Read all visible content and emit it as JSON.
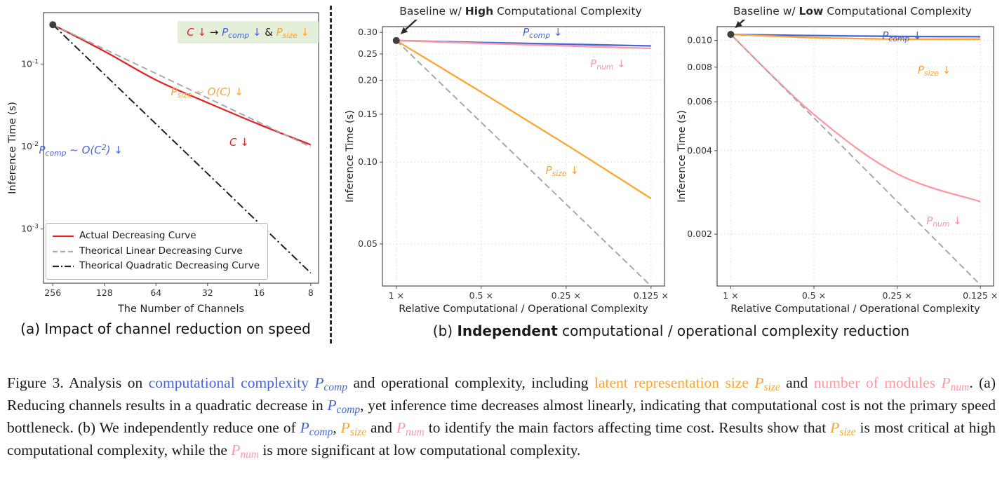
{
  "colors": {
    "blue": "#4466d9",
    "orange": "#ffa333",
    "pink": "#ff98a0",
    "red": "#e62325",
    "gray": "#a9a9a9",
    "black": "#1a1a1a",
    "dark": "#2a2a2a",
    "green_box_bg": "#e4efd9"
  },
  "panel_a_caption": "(a) Impact of channel reduction on speed",
  "panel_b_caption_segments": [
    {
      "text": "(b) ",
      "color": "black"
    },
    {
      "text": "Independent",
      "color": "black",
      "bold": true
    },
    {
      "text": " computational / operational complexity reduction",
      "color": "black"
    }
  ],
  "chart_data": [
    {
      "mount": "chart-a",
      "type": "line",
      "xlabel": "The Number of Channels",
      "ylabel": "Inference Time (s)",
      "xscale": "log",
      "yscale": "log",
      "x_reversed": true,
      "xlim": [
        7.2,
        290
      ],
      "ylim": [
        0.00022,
        0.42
      ],
      "x": [
        256,
        128,
        64,
        32,
        16,
        8
      ],
      "xticks": [
        {
          "v": 256,
          "label": "256"
        },
        {
          "v": 128,
          "label": "128"
        },
        {
          "v": 64,
          "label": "64"
        },
        {
          "v": 32,
          "label": "32"
        },
        {
          "v": 16,
          "label": "16"
        },
        {
          "v": 8,
          "label": "8"
        }
      ],
      "yticks": [
        {
          "v": 0.1,
          "label": "10^{-1}"
        },
        {
          "v": 0.01,
          "label": "10^{-2}"
        },
        {
          "v": 0.001,
          "label": "10^{-3}"
        }
      ],
      "margins": {
        "l": 54,
        "t": 12,
        "r": 10,
        "b": 50
      },
      "start_dot": true,
      "legend": true,
      "series": [
        {
          "key": "actual",
          "name": "Actual Decreasing Curve",
          "color": "red",
          "dash": "solid",
          "width": 2.3,
          "smooth": true,
          "values": [
            0.3,
            0.143,
            0.064,
            0.034,
            0.0185,
            0.0105
          ]
        },
        {
          "key": "linear",
          "name": "Theorical Linear Decreasing Curve",
          "color": "gray",
          "dash": "dashed",
          "width": 2,
          "values": [
            0.3,
            0.1517,
            0.0767,
            0.0388,
            0.0196,
            0.0099
          ]
        },
        {
          "key": "quadratic",
          "name": "Theorical Quadratic Decreasing Curve",
          "color": "#222222",
          "dash": "dashdot",
          "width": 2,
          "values": [
            0.3,
            0.075,
            0.01875,
            0.00469,
            0.00117,
            0.000293
          ]
        }
      ],
      "note_segments": [
        {
          "math": "C ↓",
          "color": "red"
        },
        {
          "text": "   →   ",
          "color": "black"
        },
        {
          "math": "P_{comp} ↓",
          "color": "blue"
        },
        {
          "text": " & ",
          "color": "black"
        },
        {
          "math": "P_{size} ↓",
          "color": "orange"
        }
      ],
      "annotations": [
        {
          "name": "annotation-p-size-linear",
          "math": "P_{size} ~ O(C) ↓",
          "color": "orange",
          "x": 63,
          "y": 28
        },
        {
          "name": "annotation-channel-reduction",
          "math": "C ↓",
          "color": "red",
          "x": 73,
          "y": 44
        },
        {
          "name": "annotation-p-comp-quadratic",
          "math": "P_{comp} ~ O(C^{2}) ↓",
          "color": "blue",
          "x": 23.5,
          "y": 46.5
        }
      ]
    },
    {
      "mount": "chart-b1",
      "type": "line",
      "title_segments": [
        {
          "text": "Baseline w/ ",
          "color": "dark"
        },
        {
          "text": "High",
          "color": "dark",
          "bold": true
        },
        {
          "text": " Computational Complexity",
          "color": "dark"
        }
      ],
      "xlabel": "Relative Computational / Operational Complexity",
      "ylabel": "Inference Time (s)",
      "xscale": "log",
      "yscale": "log",
      "x_reversed": true,
      "xlim": [
        0.112,
        1.12
      ],
      "ylim": [
        0.035,
        0.315
      ],
      "x": [
        1,
        0.5,
        0.25,
        0.125
      ],
      "xticks": [
        {
          "v": 1,
          "label": "1 ×"
        },
        {
          "v": 0.5,
          "label": "0.5 ×"
        },
        {
          "v": 0.25,
          "label": "0.25 ×"
        },
        {
          "v": 0.125,
          "label": "0.125 ×"
        }
      ],
      "yticks": [
        {
          "v": 0.3,
          "label": "0.30"
        },
        {
          "v": 0.25,
          "label": "0.25"
        },
        {
          "v": 0.2,
          "label": "0.20"
        },
        {
          "v": 0.15,
          "label": "0.15"
        },
        {
          "v": 0.1,
          "label": "0.10"
        },
        {
          "v": 0.05,
          "label": "0.05"
        }
      ],
      "margins": {
        "l": 56,
        "t": 10,
        "r": 8,
        "b": 46
      },
      "grid": true,
      "start_dot": true,
      "baseline_arrow": true,
      "series": [
        {
          "key": "p-comp",
          "name": "P_{comp}",
          "color": "blue",
          "dash": "solid",
          "width": 2.3,
          "smooth": true,
          "values": [
            0.28,
            0.2755,
            0.2715,
            0.2675
          ]
        },
        {
          "key": "p-num",
          "name": "P_{num}",
          "color": "pink",
          "dash": "solid",
          "width": 2.3,
          "smooth": true,
          "values": [
            0.28,
            0.2735,
            0.2675,
            0.262
          ]
        },
        {
          "key": "p-size",
          "name": "P_{size}",
          "color": "orange",
          "dash": "solid",
          "width": 2.3,
          "smooth": true,
          "values": [
            0.28,
            0.181,
            0.116,
            0.0735
          ]
        },
        {
          "key": "theoretical",
          "name": "",
          "color": "gray",
          "dash": "dashed",
          "width": 2,
          "values": [
            0.28,
            0.14,
            0.07,
            0.035
          ]
        }
      ],
      "annotations": [
        {
          "name": "annotation-p-comp",
          "math": "P_{comp} ↓",
          "color": "blue",
          "x": 61,
          "y": 9
        },
        {
          "name": "annotation-p-num",
          "math": "P_{num} ↓",
          "color": "pink",
          "x": 81,
          "y": 19
        },
        {
          "name": "annotation-p-size",
          "math": "P_{size} ↓",
          "color": "orange",
          "x": 67,
          "y": 53
        }
      ]
    },
    {
      "mount": "chart-b2",
      "type": "line",
      "title_segments": [
        {
          "text": "Baseline w/ ",
          "color": "dark"
        },
        {
          "text": "Low",
          "color": "dark",
          "bold": true
        },
        {
          "text": " Computational Complexity",
          "color": "dark"
        }
      ],
      "xlabel": "Relative Computational / Operational Complexity",
      "ylabel": "Inference Time (s)",
      "xscale": "log",
      "yscale": "log",
      "x_reversed": true,
      "xlim": [
        0.112,
        1.12
      ],
      "ylim": [
        0.0013,
        0.0112
      ],
      "x": [
        1,
        0.5,
        0.25,
        0.125
      ],
      "xticks": [
        {
          "v": 1,
          "label": "1 ×"
        },
        {
          "v": 0.5,
          "label": "0.5 ×"
        },
        {
          "v": 0.25,
          "label": "0.25 ×"
        },
        {
          "v": 0.125,
          "label": "0.125 ×"
        }
      ],
      "yticks": [
        {
          "v": 0.01,
          "label": "0.010"
        },
        {
          "v": 0.008,
          "label": "0.008"
        },
        {
          "v": 0.006,
          "label": "0.006"
        },
        {
          "v": 0.004,
          "label": "0.004"
        },
        {
          "v": 0.002,
          "label": "0.002"
        }
      ],
      "margins": {
        "l": 60,
        "t": 10,
        "r": 8,
        "b": 46
      },
      "grid": true,
      "start_dot": true,
      "baseline_arrow": true,
      "series": [
        {
          "key": "p-comp",
          "name": "P_{comp}",
          "color": "blue",
          "dash": "solid",
          "width": 2.3,
          "smooth": true,
          "values": [
            0.0105,
            0.0104,
            0.01033,
            0.0103
          ]
        },
        {
          "key": "p-size",
          "name": "P_{size}",
          "color": "orange",
          "dash": "solid",
          "width": 2.3,
          "smooth": true,
          "values": [
            0.0105,
            0.01022,
            0.0101,
            0.0101
          ]
        },
        {
          "key": "p-num",
          "name": "P_{num}",
          "color": "pink",
          "dash": "solid",
          "width": 2.3,
          "smooth": true,
          "values": [
            0.0105,
            0.0054,
            0.0033,
            0.00262
          ]
        },
        {
          "key": "theoretical",
          "name": "",
          "color": "gray",
          "dash": "dashed",
          "width": 2,
          "values": [
            0.0105,
            0.00525,
            0.002625,
            0.0013125
          ]
        }
      ],
      "annotations": [
        {
          "name": "annotation-p-comp",
          "math": "P_{comp} ↓",
          "color": "blue",
          "x": 70,
          "y": 10
        },
        {
          "name": "annotation-p-size",
          "math": "P_{size} ↓",
          "color": "orange",
          "x": 80,
          "y": 21
        },
        {
          "name": "annotation-p-num",
          "math": "P_{num} ↓",
          "color": "pink",
          "x": 83,
          "y": 69
        }
      ]
    }
  ],
  "figure_caption": {
    "segments": [
      {
        "text": "Figure 3. Analysis on ",
        "color": "black"
      },
      {
        "text": "computational complexity ",
        "color": "blue"
      },
      {
        "math": "P_{comp}",
        "color": "blue"
      },
      {
        "text": " and operational complexity, including ",
        "color": "black"
      },
      {
        "text": "latent representation size ",
        "color": "orange"
      },
      {
        "math": "P_{size}",
        "color": "orange"
      },
      {
        "text": " and ",
        "color": "black"
      },
      {
        "text": "number of modules ",
        "color": "pink"
      },
      {
        "math": "P_{num}",
        "color": "pink"
      },
      {
        "text": ". (a) Reducing channels results in a quadratic decrease in ",
        "color": "black"
      },
      {
        "math": "P_{comp}",
        "color": "blue"
      },
      {
        "text": ", yet inference time decreases almost linearly, indicating that computational cost is not the primary speed bottleneck. (b) We independently reduce one of ",
        "color": "black"
      },
      {
        "math": "P_{comp}",
        "color": "blue"
      },
      {
        "text": ", ",
        "color": "black"
      },
      {
        "math": "P_{size}",
        "color": "orange"
      },
      {
        "text": " and ",
        "color": "black"
      },
      {
        "math": "P_{num}",
        "color": "pink"
      },
      {
        "text": " to identify the main factors affecting time cost. Results show that ",
        "color": "black"
      },
      {
        "math": "P_{size}",
        "color": "orange"
      },
      {
        "text": " is most critical at high computational complexity, while the ",
        "color": "black"
      },
      {
        "math": "P_{num}",
        "color": "pink"
      },
      {
        "text": " is more significant at low computational complexity.",
        "color": "black"
      }
    ]
  }
}
